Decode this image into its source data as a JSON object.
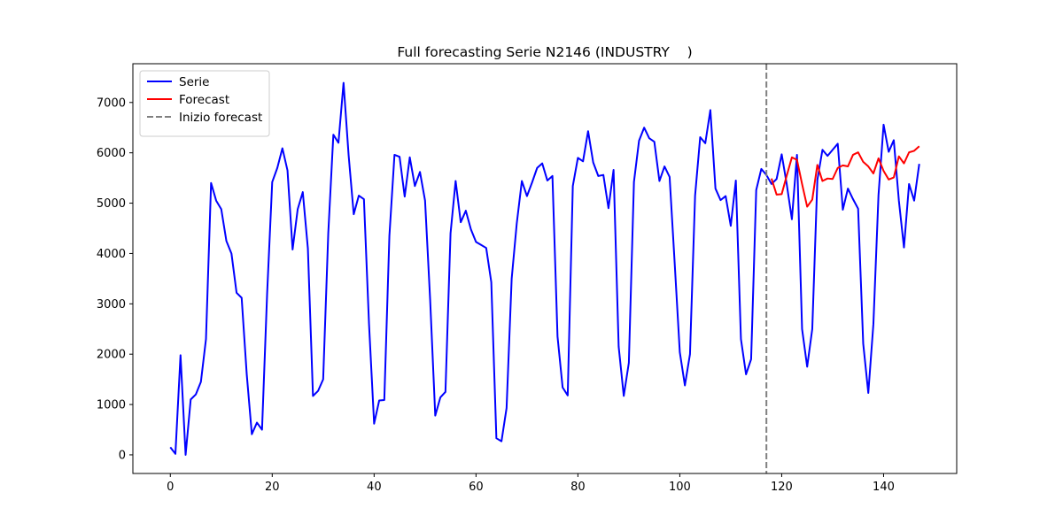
{
  "chart_data": {
    "type": "line",
    "title": "Full forecasting Serie N2146 (INDUSTRY    )",
    "xlabel": "",
    "ylabel": "",
    "xlim": [
      -7.35,
      154.35
    ],
    "ylim": [
      -370,
      7770
    ],
    "xticks": [
      0,
      20,
      40,
      60,
      80,
      100,
      120,
      140
    ],
    "yticks": [
      0,
      1000,
      2000,
      3000,
      4000,
      5000,
      6000,
      7000
    ],
    "grid": false,
    "legend_position": "top-left",
    "series": [
      {
        "name": "Serie",
        "color": "#0000ff",
        "x": [
          0,
          1,
          2,
          3,
          4,
          5,
          6,
          7,
          8,
          9,
          10,
          11,
          12,
          13,
          14,
          15,
          16,
          17,
          18,
          19,
          20,
          21,
          22,
          23,
          24,
          25,
          26,
          27,
          28,
          29,
          30,
          31,
          32,
          33,
          34,
          35,
          36,
          37,
          38,
          39,
          40,
          41,
          42,
          43,
          44,
          45,
          46,
          47,
          48,
          49,
          50,
          51,
          52,
          53,
          54,
          55,
          56,
          57,
          58,
          59,
          60,
          61,
          62,
          63,
          64,
          65,
          66,
          67,
          68,
          69,
          70,
          71,
          72,
          73,
          74,
          75,
          76,
          77,
          78,
          79,
          80,
          81,
          82,
          83,
          84,
          85,
          86,
          87,
          88,
          89,
          90,
          91,
          92,
          93,
          94,
          95,
          96,
          97,
          98,
          99,
          100,
          101,
          102,
          103,
          104,
          105,
          106,
          107,
          108,
          109,
          110,
          111,
          112,
          113,
          114,
          115,
          116,
          117,
          118,
          119,
          120,
          121,
          122,
          123,
          124,
          125,
          126,
          127,
          128,
          129,
          130,
          131,
          132,
          133,
          134,
          135,
          136,
          137,
          138,
          139,
          140,
          141,
          142,
          143,
          144,
          145,
          146,
          147
        ],
        "values": [
          150,
          20,
          1980,
          0,
          1100,
          1200,
          1450,
          2300,
          5400,
          5050,
          4880,
          4250,
          4000,
          3220,
          3120,
          1600,
          410,
          640,
          500,
          3200,
          5420,
          5700,
          6090,
          5650,
          4080,
          4880,
          5220,
          4100,
          1170,
          1270,
          1500,
          4400,
          6360,
          6200,
          7390,
          5950,
          4780,
          5150,
          5080,
          2600,
          620,
          1080,
          1090,
          4350,
          5960,
          5920,
          5130,
          5910,
          5340,
          5620,
          5050,
          3080,
          780,
          1140,
          1250,
          4400,
          5440,
          4620,
          4850,
          4480,
          4230,
          4170,
          4110,
          3430,
          330,
          270,
          930,
          3500,
          4600,
          5440,
          5140,
          5410,
          5700,
          5790,
          5450,
          5540,
          2350,
          1340,
          1180,
          5340,
          5900,
          5830,
          6430,
          5810,
          5540,
          5560,
          4900,
          5660,
          2150,
          1170,
          1830,
          5420,
          6240,
          6500,
          6290,
          6220,
          5440,
          5730,
          5520,
          3800,
          2040,
          1380,
          2000,
          5150,
          6310,
          6190,
          6850,
          5290,
          5060,
          5140,
          4550,
          5450,
          2300,
          1600,
          1900,
          5260,
          5680,
          5560,
          5380,
          5480,
          5970,
          5370,
          4680,
          5960,
          2500,
          1750,
          2500,
          5460,
          6060,
          5940,
          6060,
          6180,
          4870,
          5290,
          5080,
          4890,
          2210,
          1230,
          2600,
          5160,
          6560,
          6020,
          6250,
          5050,
          4120,
          5380,
          5050,
          5780
        ]
      },
      {
        "name": "Forecast",
        "color": "#ff0000",
        "x": [
          118,
          119,
          120,
          121,
          122,
          123,
          124,
          125,
          126,
          127,
          128,
          129,
          130,
          131,
          132,
          133,
          134,
          135,
          136,
          137,
          138,
          139,
          140,
          141,
          142,
          143,
          144,
          145,
          146,
          147
        ],
        "values": [
          5490,
          5170,
          5180,
          5550,
          5910,
          5860,
          5380,
          4930,
          5070,
          5760,
          5440,
          5490,
          5480,
          5700,
          5750,
          5730,
          5960,
          6010,
          5820,
          5730,
          5590,
          5890,
          5640,
          5470,
          5510,
          5930,
          5790,
          6010,
          6040,
          6130
        ]
      }
    ],
    "vline": {
      "name": "Inizio forecast",
      "x": 117,
      "color": "#808080"
    }
  }
}
